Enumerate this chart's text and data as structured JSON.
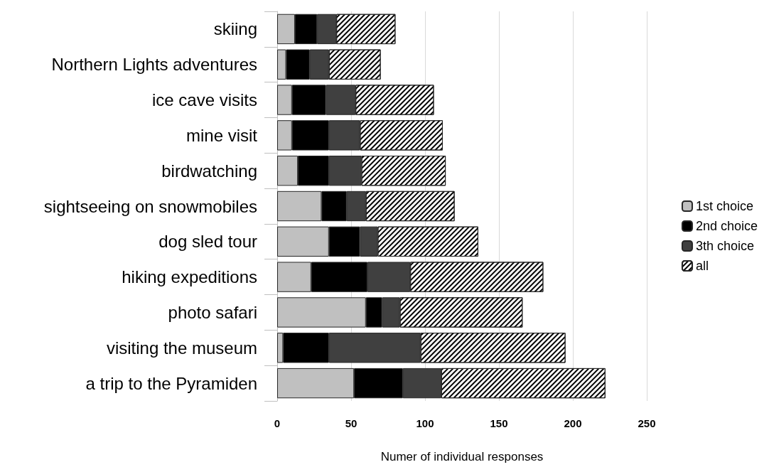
{
  "chart_data": {
    "type": "bar",
    "orientation": "horizontal",
    "stacked": true,
    "xlabel": "Numer of individual responses",
    "categories": [
      "skiing",
      "Northern Lights adventures",
      "ice cave visits",
      "mine visit",
      "birdwatching",
      "sightseeing on snowmobiles",
      "dog sled tour",
      "hiking expeditions",
      "photo safari",
      "visiting the museum",
      "a trip to the Pyramiden"
    ],
    "series": [
      {
        "name": "1st choice",
        "color": "#c0c0c0",
        "values": [
          12,
          6,
          10,
          10,
          14,
          30,
          35,
          23,
          60,
          4,
          52
        ]
      },
      {
        "name": "2nd choice",
        "color": "#000000",
        "values": [
          15,
          16,
          23,
          25,
          21,
          17,
          21,
          38,
          11,
          31,
          33
        ]
      },
      {
        "name": "3th choice",
        "color": "#404040",
        "values": [
          13,
          13,
          20,
          21,
          22,
          13,
          12,
          29,
          12,
          62,
          26
        ]
      },
      {
        "name": "all",
        "color": "#ffffff",
        "values": [
          40,
          35,
          53,
          56,
          57,
          60,
          68,
          90,
          83,
          98,
          111
        ]
      }
    ],
    "xlim": [
      0,
      250
    ],
    "xticks": [
      0,
      50,
      100,
      150,
      200,
      250
    ],
    "grid": "x",
    "legend": "right"
  }
}
